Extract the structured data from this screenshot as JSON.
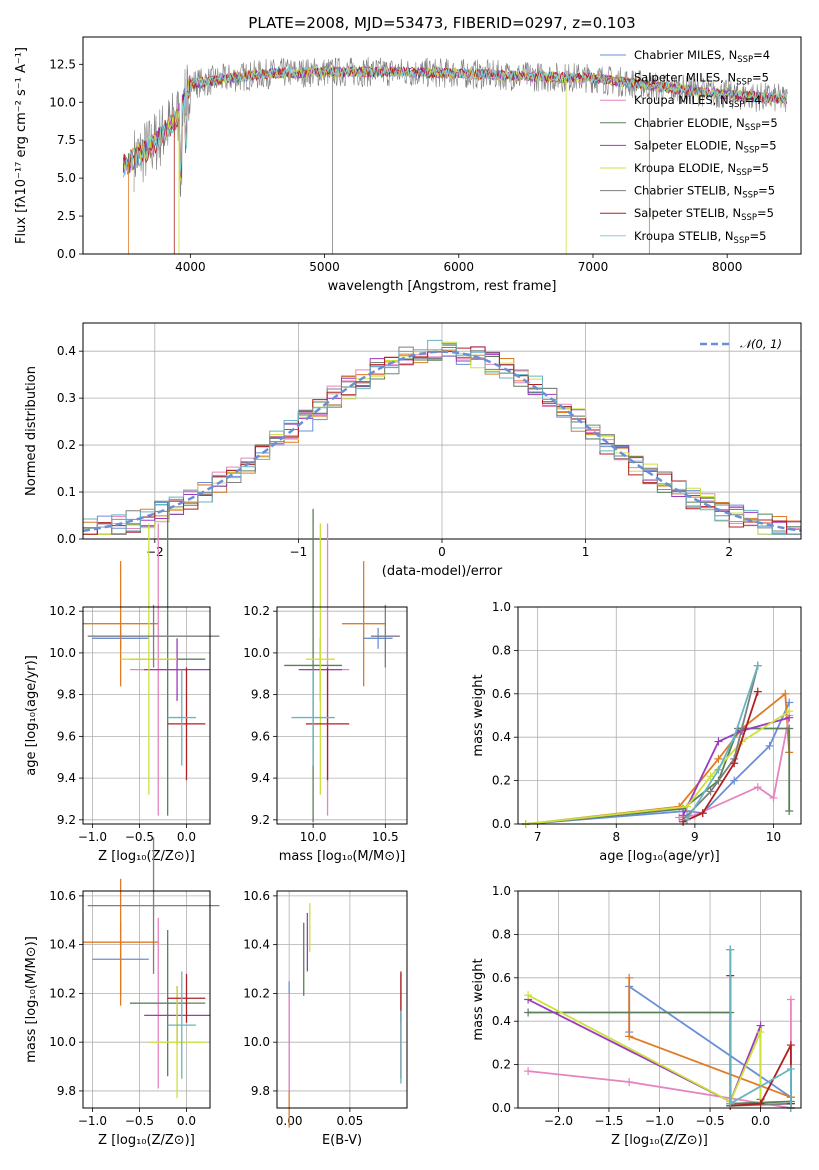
{
  "colors": [
    "#6a8fd6",
    "#e07b24",
    "#4f4f4f",
    "#4f7f4f",
    "#9b3bbf",
    "#dada3a",
    "#7f7f7f",
    "#b02020",
    "#7fd3db"
  ],
  "colors_p3": [
    "#6a8fd6",
    "#e07b24",
    "#e584be",
    "#5b7f5b",
    "#9b3bbf",
    "#cde03c",
    "#7f7f7f",
    "#b02020",
    "#69b4bf"
  ],
  "chart_data": [
    {
      "id": "spectrum",
      "type": "line",
      "title": "PLATE=2008, MJD=53473, FIBERID=0297, z=0.103",
      "xlabel": "wavelength [Angstrom, rest frame]",
      "ylabel": "Flux [fλ10⁻¹⁷ erg cm⁻² s⁻¹ A⁻¹]",
      "xlim": [
        3200,
        8550
      ],
      "ylim": [
        0,
        14.3
      ],
      "xticks": [
        4000,
        5000,
        6000,
        7000,
        8000
      ],
      "yticks": [
        0.0,
        2.5,
        5.0,
        7.5,
        10.0,
        12.5
      ],
      "legend_position": "top-right",
      "legend": [
        {
          "label": "Chabrier MILES, N",
          "sub": "SSP",
          "tail": "=4",
          "color": "#6a8fd6"
        },
        {
          "label": "Salpeter MILES, N",
          "sub": "SSP",
          "tail": "=5",
          "color": "#e07b24"
        },
        {
          "label": "Kroupa MILES, N",
          "sub": "SSP",
          "tail": "=4",
          "color": "#e584be"
        },
        {
          "label": "Chabrier ELODIE, N",
          "sub": "SSP",
          "tail": "=5",
          "color": "#5b7f5b"
        },
        {
          "label": "Salpeter ELODIE, N",
          "sub": "SSP",
          "tail": "=5",
          "color": "#9b3bbf"
        },
        {
          "label": "Kroupa ELODIE, N",
          "sub": "SSP",
          "tail": "=5",
          "color": "#cde03c"
        },
        {
          "label": "Chabrier STELIB, N",
          "sub": "SSP",
          "tail": "=5",
          "color": "#7f7f7f"
        },
        {
          "label": "Salpeter STELIB, N",
          "sub": "SSP",
          "tail": "=5",
          "color": "#b02020"
        },
        {
          "label": "Kroupa STELIB, N",
          "sub": "SSP",
          "tail": "=5",
          "color": "#7fd3db"
        }
      ],
      "continuum": [
        [
          3500,
          5.8
        ],
        [
          3700,
          7.0
        ],
        [
          3900,
          9.0
        ],
        [
          4000,
          11.2
        ],
        [
          4300,
          11.6
        ],
        [
          4600,
          11.9
        ],
        [
          5000,
          12.0
        ],
        [
          5500,
          12.0
        ],
        [
          6000,
          11.9
        ],
        [
          6500,
          11.7
        ],
        [
          7000,
          11.6
        ],
        [
          7500,
          11.0
        ],
        [
          8000,
          10.5
        ],
        [
          8450,
          10.2
        ]
      ]
    },
    {
      "id": "residuals",
      "type": "histogram",
      "xlabel": "(data-model)/error",
      "ylabel": "Normed distribution",
      "xlim": [
        -2.5,
        2.5
      ],
      "ylim": [
        0,
        0.46
      ],
      "xticks": [
        -2,
        -1,
        0,
        1,
        2
      ],
      "yticks": [
        0.0,
        0.1,
        0.2,
        0.3,
        0.4
      ],
      "legend_position": "top-right",
      "legend_label": "𝒩(0, 1)",
      "bin_width": 0.1
    },
    {
      "id": "age_vs_Z",
      "type": "errorbar",
      "xlabel": "Z [log₁₀(Z/Z⊙)]",
      "ylabel": "age  [log₁₀(age/yr)]",
      "xlim": [
        -1.1,
        0.25
      ],
      "ylim": [
        9.18,
        10.22
      ],
      "xticks": [
        -1.0,
        -0.5,
        0.0
      ],
      "yticks": [
        9.2,
        9.4,
        9.6,
        9.8,
        10.0,
        10.2
      ],
      "points": [
        {
          "x": -0.7,
          "xe": 0.3,
          "y": 10.07,
          "ye": 0.05
        },
        {
          "x": -0.7,
          "xe": 0.4,
          "y": 10.14,
          "ye": 0.3
        },
        {
          "x": -0.3,
          "xe": 0.3,
          "y": 9.92,
          "ye": 0.7
        },
        {
          "x": -0.2,
          "xe": 0.4,
          "y": 9.97,
          "ye": 0.75
        },
        {
          "x": -0.1,
          "xe": 0.35,
          "y": 9.92,
          "ye": 0.15
        },
        {
          "x": -0.4,
          "xe": 0.3,
          "y": 9.97,
          "ye": 0.65
        },
        {
          "x": -0.35,
          "xe": 0.7,
          "y": 10.08,
          "ye": 0.15
        },
        {
          "x": 0.0,
          "xe": 0.2,
          "y": 9.66,
          "ye": 0.27
        },
        {
          "x": -0.05,
          "xe": 0.15,
          "y": 9.69,
          "ye": 0.23
        }
      ]
    },
    {
      "id": "age_vs_mass",
      "type": "errorbar",
      "xlabel": "mass [log₁₀(M/M⊙)]",
      "ylabel": "",
      "xlim": [
        9.75,
        10.65
      ],
      "ylim": [
        9.18,
        10.22
      ],
      "xticks": [
        10.0,
        10.5
      ],
      "yticks": [
        9.2,
        9.4,
        9.6,
        9.8,
        10.0,
        10.2
      ],
      "points": [
        {
          "x": 10.45,
          "xe": 0.1,
          "y": 10.07,
          "ye": 0.05
        },
        {
          "x": 10.35,
          "xe": 0.15,
          "y": 10.14,
          "ye": 0.3
        },
        {
          "x": 10.1,
          "xe": 0.15,
          "y": 9.92,
          "ye": 0.7
        },
        {
          "x": 10.0,
          "xe": 0.2,
          "y": 9.94,
          "ye": 0.75
        },
        {
          "x": 10.05,
          "xe": 0.15,
          "y": 9.92,
          "ye": 0.15
        },
        {
          "x": 10.05,
          "xe": 0.1,
          "y": 9.97,
          "ye": 0.65
        },
        {
          "x": 10.5,
          "xe": 0.1,
          "y": 10.08,
          "ye": 0.15
        },
        {
          "x": 10.1,
          "xe": 0.15,
          "y": 9.66,
          "ye": 0.27
        },
        {
          "x": 10.0,
          "xe": 0.15,
          "y": 9.69,
          "ye": 0.23
        }
      ]
    },
    {
      "id": "massweight_vs_age",
      "type": "line",
      "xlabel": "age  [log₁₀(age/yr)]",
      "ylabel": "mass weight",
      "xlim": [
        6.75,
        10.35
      ],
      "ylim": [
        0,
        1.0
      ],
      "xticks": [
        7,
        8,
        9,
        10
      ],
      "yticks": [
        0.0,
        0.2,
        0.4,
        0.6,
        0.8,
        1.0
      ],
      "series": [
        {
          "x": [
            6.85,
            8.9,
            9.1,
            9.5,
            9.95,
            10.2
          ],
          "y": [
            0.0,
            0.06,
            0.05,
            0.2,
            0.36,
            0.56
          ]
        },
        {
          "x": [
            6.85,
            8.8,
            9.3,
            9.6,
            10.15,
            10.2
          ],
          "y": [
            0.0,
            0.08,
            0.3,
            0.44,
            0.6,
            0.33
          ]
        },
        {
          "x": [
            8.8,
            9.0,
            9.8,
            10.0,
            10.2
          ],
          "y": [
            0.03,
            0.04,
            0.17,
            0.12,
            0.5
          ]
        },
        {
          "x": [
            6.85,
            8.85,
            9.3,
            9.55,
            10.2,
            10.2
          ],
          "y": [
            0.0,
            0.07,
            0.2,
            0.44,
            0.44,
            0.06
          ]
        },
        {
          "x": [
            8.85,
            9.3,
            9.6,
            10.2
          ],
          "y": [
            0.04,
            0.38,
            0.43,
            0.49
          ]
        },
        {
          "x": [
            6.85,
            8.9,
            9.2,
            9.6,
            10.2
          ],
          "y": [
            0.0,
            0.08,
            0.22,
            0.38,
            0.52
          ]
        },
        {
          "x": [
            8.85,
            9.2,
            9.5,
            9.8
          ],
          "y": [
            0.02,
            0.15,
            0.3,
            0.73
          ]
        },
        {
          "x": [
            8.85,
            9.1,
            9.5,
            9.8
          ],
          "y": [
            0.01,
            0.05,
            0.28,
            0.61
          ]
        },
        {
          "x": [
            8.9,
            9.3,
            9.5,
            9.8
          ],
          "y": [
            0.02,
            0.25,
            0.4,
            0.73
          ]
        }
      ]
    },
    {
      "id": "mass_vs_Z",
      "type": "errorbar",
      "xlabel": "Z [log₁₀(Z/Z⊙)]",
      "ylabel": "mass [log₁₀(M/M⊙)]",
      "xlim": [
        -1.1,
        0.25
      ],
      "ylim": [
        9.73,
        10.62
      ],
      "xticks": [
        -1.0,
        -0.5,
        0.0
      ],
      "yticks": [
        9.8,
        10.0,
        10.2,
        10.4,
        10.6
      ],
      "points": [
        {
          "x": -0.7,
          "xe": 0.3,
          "y": 10.34,
          "ye": 0.15
        },
        {
          "x": -0.7,
          "xe": 0.4,
          "y": 10.41,
          "ye": 0.26
        },
        {
          "x": -0.3,
          "xe": 0.3,
          "y": 10.16,
          "ye": 0.35
        },
        {
          "x": -0.2,
          "xe": 0.4,
          "y": 10.16,
          "ye": 0.3
        },
        {
          "x": -0.1,
          "xe": 0.35,
          "y": 10.11,
          "ye": 0.12
        },
        {
          "x": -0.1,
          "xe": 0.3,
          "y": 10.0,
          "ye": 0.23
        },
        {
          "x": -0.35,
          "xe": 0.7,
          "y": 10.56,
          "ye": 0.28
        },
        {
          "x": 0.0,
          "xe": 0.2,
          "y": 10.18,
          "ye": 0.1
        },
        {
          "x": -0.05,
          "xe": 0.15,
          "y": 10.07,
          "ye": 0.22
        }
      ]
    },
    {
      "id": "mass_vs_ebv",
      "type": "errorbar",
      "xlabel": "E(B-V)",
      "ylabel": "",
      "xlim": [
        -0.01,
        0.097
      ],
      "ylim": [
        9.73,
        10.62
      ],
      "xticks": [
        0.0,
        0.05
      ],
      "yticks": [
        9.8,
        10.0,
        10.2,
        10.4,
        10.6
      ],
      "points": [
        {
          "x": 0.0,
          "xe": 0.0,
          "y": 10.2,
          "ye": 0.05
        },
        {
          "x": 0.0,
          "xe": 0.0,
          "y": 9.9,
          "ye": 0.25
        },
        {
          "x": 0.0,
          "xe": 0.0,
          "y": 10.0,
          "ye": 0.2
        },
        {
          "x": 0.012,
          "xe": 0.0,
          "y": 10.34,
          "ye": 0.15
        },
        {
          "x": 0.015,
          "xe": 0.0,
          "y": 10.41,
          "ye": 0.12
        },
        {
          "x": 0.017,
          "xe": 0.0,
          "y": 10.47,
          "ye": 0.1
        },
        {
          "x": 0.092,
          "xe": 0.0,
          "y": 10.18,
          "ye": 0.1
        },
        {
          "x": 0.092,
          "xe": 0.0,
          "y": 10.07,
          "ye": 0.22
        },
        {
          "x": 0.092,
          "xe": 0.0,
          "y": 9.98,
          "ye": 0.15
        }
      ]
    },
    {
      "id": "massweight_vs_Z",
      "type": "line",
      "xlabel": "Z [log₁₀(Z/Z⊙)]",
      "ylabel": "mass weight",
      "xlim": [
        -2.4,
        0.4
      ],
      "ylim": [
        0,
        1.0
      ],
      "xticks": [
        -2.0,
        -1.5,
        -1.0,
        -0.5,
        0.0
      ],
      "yticks": [
        0.0,
        0.2,
        0.4,
        0.6,
        0.8,
        1.0
      ],
      "series": [
        {
          "x": [
            -1.3,
            -1.3,
            0.3,
            0.3
          ],
          "y": [
            0.35,
            0.56,
            0.05,
            0.0
          ]
        },
        {
          "x": [
            -1.3,
            -1.3,
            0.3,
            0.3
          ],
          "y": [
            0.6,
            0.33,
            0.05,
            0.0
          ]
        },
        {
          "x": [
            -2.3,
            -1.3,
            0.3,
            0.3
          ],
          "y": [
            0.17,
            0.12,
            0.0,
            0.5
          ]
        },
        {
          "x": [
            -2.3,
            -0.3,
            -0.3,
            0.3
          ],
          "y": [
            0.44,
            0.44,
            0.02,
            0.03
          ]
        },
        {
          "x": [
            -2.3,
            -0.3,
            0.0,
            0.0
          ],
          "y": [
            0.5,
            0.03,
            0.38,
            0.04
          ]
        },
        {
          "x": [
            -2.3,
            -0.3,
            0.0,
            0.0
          ],
          "y": [
            0.52,
            0.03,
            0.35,
            0.03
          ]
        },
        {
          "x": [
            -0.3,
            -0.3,
            0.3,
            0.3
          ],
          "y": [
            0.73,
            0.01,
            0.02,
            0.0
          ]
        },
        {
          "x": [
            -0.3,
            -0.3,
            0.0,
            0.3,
            0.3
          ],
          "y": [
            0.61,
            0.01,
            0.02,
            0.29,
            0.02
          ]
        },
        {
          "x": [
            -0.3,
            -0.3,
            0.3,
            0.3
          ],
          "y": [
            0.73,
            0.02,
            0.18,
            0.0
          ]
        }
      ]
    }
  ]
}
